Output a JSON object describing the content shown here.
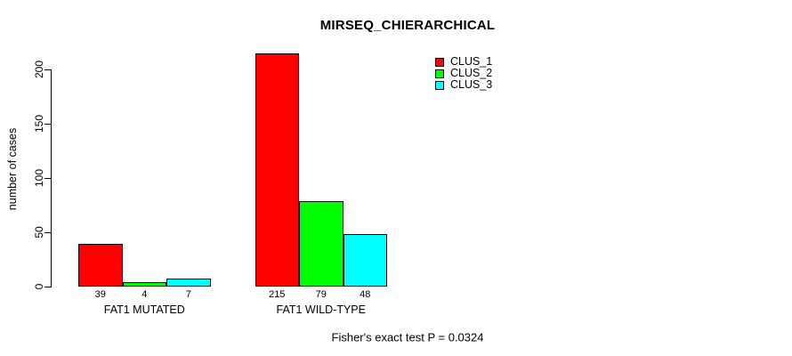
{
  "title": "MIRSEQ_CHIERARCHICAL",
  "annotation": "Fisher's exact test P = 0.0324",
  "colors": {
    "background": "#FFFFFF",
    "axis": "#000000",
    "bar_border": "#000000",
    "clus_1": "#FF0000",
    "clus_2": "#00FF00",
    "clus_3": "#00FFFF"
  },
  "chart_data": {
    "type": "bar",
    "title": "MIRSEQ_CHIERARCHICAL",
    "categories": [
      "FAT1 MUTATED",
      "FAT1 WILD-TYPE"
    ],
    "series": [
      {
        "name": "CLUS_1",
        "color": "#FF0000",
        "values": [
          39,
          215
        ]
      },
      {
        "name": "CLUS_2",
        "color": "#00FF00",
        "values": [
          4,
          79
        ]
      },
      {
        "name": "CLUS_3",
        "color": "#00FFFF",
        "values": [
          7,
          48
        ]
      }
    ],
    "xlabel": "",
    "ylabel": "number of cases",
    "ylim": [
      0,
      200
    ],
    "yticks": [
      0,
      50,
      100,
      150,
      200
    ],
    "bar_value_labels": true,
    "grid": false,
    "legend_position": "top-right",
    "annotation": "Fisher's exact test P = 0.0324"
  }
}
